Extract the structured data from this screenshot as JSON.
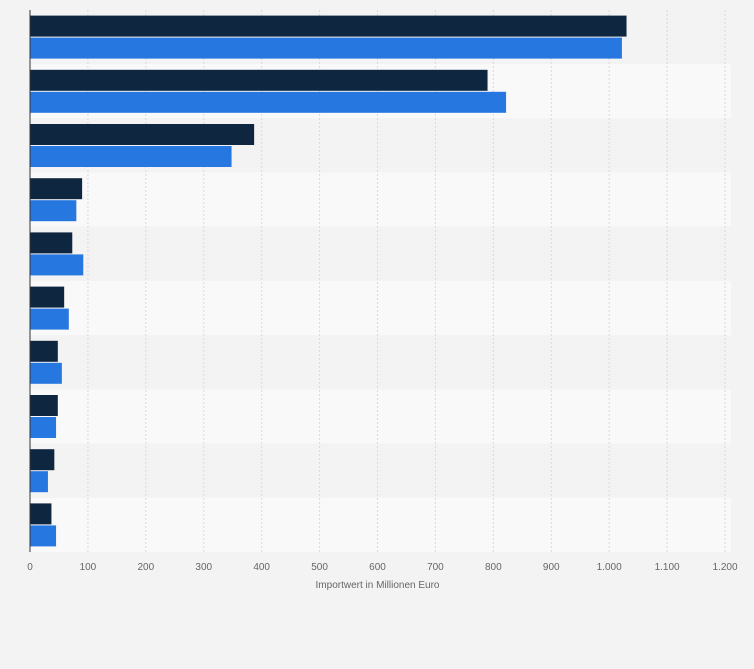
{
  "chart_data": {
    "type": "bar",
    "orientation": "horizontal",
    "categories": [
      "",
      "",
      "",
      "",
      "",
      "",
      "",
      "",
      "",
      ""
    ],
    "series": [
      {
        "color": "#0f2640",
        "values": [
          1030,
          790,
          387,
          90,
          73,
          59,
          48,
          48,
          42,
          37
        ]
      },
      {
        "color": "#2777e0",
        "values": [
          1022,
          822,
          348,
          80,
          92,
          67,
          55,
          45,
          31,
          45
        ]
      }
    ],
    "xlim": [
      0,
      1200
    ],
    "xticks": [
      0,
      100,
      200,
      300,
      400,
      500,
      600,
      700,
      800,
      900,
      1000,
      1100,
      1200
    ],
    "tick_labels": [
      "0",
      "100",
      "200",
      "300",
      "400",
      "500",
      "600",
      "700",
      "800",
      "900",
      "1.000",
      "1.100",
      "1.200"
    ],
    "xlabel": "Importwert in Millionen Euro",
    "grid": true,
    "legend": false
  }
}
